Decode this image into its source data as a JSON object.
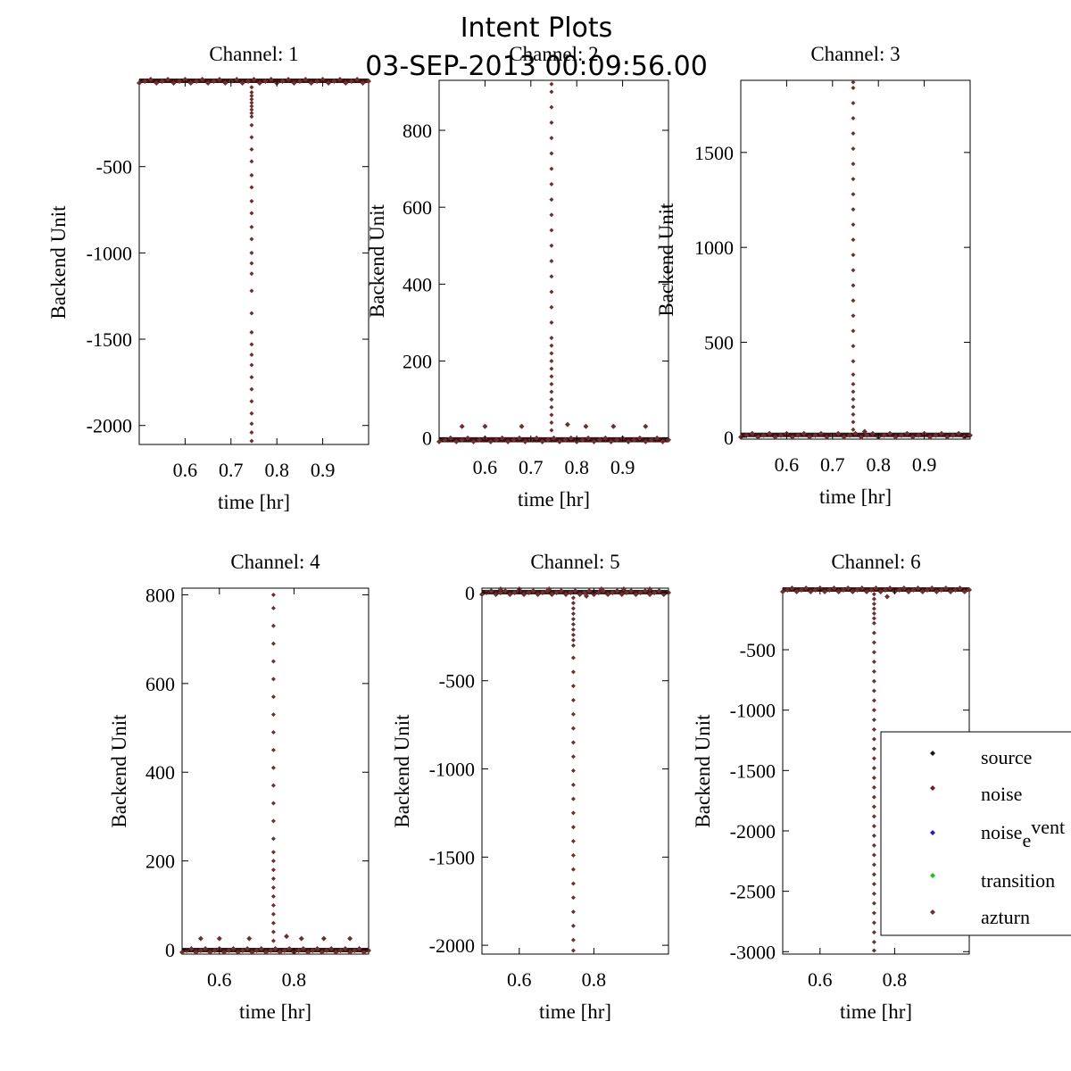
{
  "figure": {
    "title": "Intent Plots",
    "subtitle": "03-SEP-2013 00:09:56.00"
  },
  "legend": {
    "entries": [
      {
        "label": "source",
        "color": "#1a1a1a"
      },
      {
        "label": "noise",
        "color": "#7a1a1a"
      },
      {
        "label": "noise",
        "label_sub": "e",
        "label_tail": "vent",
        "color": "#1f1fd0"
      },
      {
        "label": "transition",
        "color": "#22c022"
      },
      {
        "label": "azturn",
        "color": "#6b3030"
      }
    ]
  },
  "chart_data": [
    {
      "type": "scatter",
      "title": "Channel: 1",
      "xlabel": "time [hr]",
      "ylabel": "Backend Unit",
      "xlim": [
        0.5,
        1.0
      ],
      "ylim": [
        -2110,
        0
      ],
      "xticks": [
        0.6,
        0.7,
        0.8,
        0.9
      ],
      "xticklabels": [
        "0.6",
        "0.7",
        "0.8",
        "0.9"
      ],
      "yticks": [
        -500,
        -1000,
        -1500,
        -2000
      ],
      "yticklabels": [
        "-500",
        "-1000",
        "-1500",
        "-2000"
      ],
      "baseline": -5,
      "spike": {
        "x": 0.745,
        "values": [
          -40,
          -70,
          -90,
          -110,
          -130,
          -150,
          -170,
          -190,
          -210,
          -260,
          -330,
          -400,
          -470,
          -550,
          -620,
          -700,
          -770,
          -850,
          -920,
          -1000,
          -1060,
          -1120,
          -1220,
          -1350,
          -1460,
          -1530,
          -1590,
          -1650,
          -1720,
          -1790,
          -1860,
          -1930,
          -1990,
          -2040,
          -2090
        ]
      },
      "blips": []
    },
    {
      "type": "scatter",
      "title": "Channel: 2",
      "xlabel": "time [hr]",
      "ylabel": "Backend Unit",
      "xlim": [
        0.5,
        1.0
      ],
      "ylim": [
        -10,
        930
      ],
      "xticks": [
        0.6,
        0.7,
        0.8,
        0.9
      ],
      "xticklabels": [
        "0.6",
        "0.7",
        "0.8",
        "0.9"
      ],
      "yticks": [
        0,
        200,
        400,
        600,
        800
      ],
      "yticklabels": [
        "0",
        "200",
        "400",
        "600",
        "800"
      ],
      "baseline": -5,
      "spike": {
        "x": 0.745,
        "values": [
          20,
          40,
          60,
          80,
          100,
          120,
          140,
          160,
          180,
          200,
          220,
          240,
          260,
          300,
          340,
          380,
          420,
          460,
          500,
          540,
          580,
          620,
          660,
          700,
          740,
          780,
          820,
          860,
          900,
          920
        ]
      },
      "blips": [
        {
          "x": 0.55,
          "v": 30
        },
        {
          "x": 0.6,
          "v": 30
        },
        {
          "x": 0.68,
          "v": 30
        },
        {
          "x": 0.78,
          "v": 35
        },
        {
          "x": 0.82,
          "v": 30
        },
        {
          "x": 0.88,
          "v": 30
        },
        {
          "x": 0.95,
          "v": 30
        }
      ]
    },
    {
      "type": "scatter",
      "title": "Channel: 3",
      "xlabel": "time [hr]",
      "ylabel": "Backend Unit",
      "xlim": [
        0.5,
        1.0
      ],
      "ylim": [
        -10,
        1880
      ],
      "xticks": [
        0.6,
        0.7,
        0.8,
        0.9
      ],
      "xticklabels": [
        "0.6",
        "0.7",
        "0.8",
        "0.9"
      ],
      "yticks": [
        0,
        500,
        1000,
        1500
      ],
      "yticklabels": [
        "0",
        "500",
        "1000",
        "1500"
      ],
      "baseline": 10,
      "spike": {
        "x": 0.745,
        "values": [
          40,
          80,
          120,
          160,
          200,
          240,
          280,
          330,
          400,
          480,
          560,
          640,
          720,
          800,
          880,
          960,
          1040,
          1120,
          1200,
          1280,
          1360,
          1440,
          1520,
          1600,
          1680,
          1760,
          1840,
          1870
        ]
      },
      "blips": [
        {
          "x": 0.77,
          "v": 30
        }
      ]
    },
    {
      "type": "scatter",
      "title": "Channel: 4",
      "xlabel": "time [hr]",
      "ylabel": "Backend Unit",
      "xlim": [
        0.5,
        1.0
      ],
      "ylim": [
        -10,
        815
      ],
      "xticks": [
        0.6,
        0.8
      ],
      "xticklabels": [
        "0.6",
        "0.8"
      ],
      "yticks": [
        0,
        200,
        400,
        600,
        800
      ],
      "yticklabels": [
        "0",
        "200",
        "400",
        "600",
        "800"
      ],
      "baseline": -2,
      "spike": {
        "x": 0.745,
        "values": [
          20,
          40,
          60,
          80,
          100,
          120,
          140,
          160,
          180,
          200,
          220,
          250,
          290,
          330,
          370,
          410,
          450,
          490,
          530,
          570,
          610,
          650,
          690,
          730,
          770,
          800
        ]
      },
      "blips": [
        {
          "x": 0.55,
          "v": 25
        },
        {
          "x": 0.6,
          "v": 25
        },
        {
          "x": 0.68,
          "v": 25
        },
        {
          "x": 0.78,
          "v": 30
        },
        {
          "x": 0.82,
          "v": 25
        },
        {
          "x": 0.88,
          "v": 25
        },
        {
          "x": 0.95,
          "v": 25
        }
      ]
    },
    {
      "type": "scatter",
      "title": "Channel: 5",
      "xlabel": "time [hr]",
      "ylabel": "Backend Unit",
      "xlim": [
        0.5,
        1.0
      ],
      "ylim": [
        -2050,
        25
      ],
      "xticks": [
        0.6,
        0.8
      ],
      "xticklabels": [
        "0.6",
        "0.8"
      ],
      "yticks": [
        0,
        -500,
        -1000,
        -1500,
        -2000
      ],
      "yticklabels": [
        "0",
        "-500",
        "-1000",
        "-1500",
        "-2000"
      ],
      "baseline": 0,
      "spike": {
        "x": 0.745,
        "values": [
          -30,
          -60,
          -90,
          -120,
          -150,
          -180,
          -210,
          -240,
          -270,
          -300,
          -370,
          -450,
          -530,
          -610,
          -690,
          -770,
          -850,
          -930,
          -1010,
          -1090,
          -1170,
          -1250,
          -1330,
          -1410,
          -1490,
          -1570,
          -1650,
          -1730,
          -1810,
          -1890,
          -1970,
          -2030
        ]
      },
      "blips": [
        {
          "x": 0.55,
          "v": 20
        },
        {
          "x": 0.6,
          "v": 20
        },
        {
          "x": 0.68,
          "v": 20
        },
        {
          "x": 0.78,
          "v": -20
        },
        {
          "x": 0.82,
          "v": 20
        },
        {
          "x": 0.88,
          "v": 20
        },
        {
          "x": 0.95,
          "v": 20
        }
      ]
    },
    {
      "type": "scatter",
      "title": "Channel: 6",
      "xlabel": "time [hr]",
      "ylabel": "Backend Unit",
      "xlim": [
        0.5,
        1.0
      ],
      "ylim": [
        -3020,
        10
      ],
      "xticks": [
        0.6,
        0.8
      ],
      "xticklabels": [
        "0.6",
        "0.8"
      ],
      "yticks": [
        -500,
        -1000,
        -1500,
        -2000,
        -2500,
        -3000
      ],
      "yticklabels": [
        "-500",
        "-1000",
        "-1500",
        "-2000",
        "-2500",
        "-3000"
      ],
      "baseline": -5,
      "spike": {
        "x": 0.745,
        "values": [
          -40,
          -80,
          -120,
          -160,
          -200,
          -240,
          -280,
          -360,
          -440,
          -520,
          -600,
          -680,
          -760,
          -840,
          -920,
          -1000,
          -1080,
          -1160,
          -1240,
          -1320,
          -1400,
          -1480,
          -1560,
          -1640,
          -1720,
          -1800,
          -1880,
          -1960,
          -2040,
          -2120,
          -2200,
          -2280,
          -2360,
          -2440,
          -2520,
          -2600,
          -2680,
          -2760,
          -2840,
          -2920,
          -2990
        ]
      },
      "blips": [
        {
          "x": 0.78,
          "v": -60
        }
      ]
    }
  ]
}
